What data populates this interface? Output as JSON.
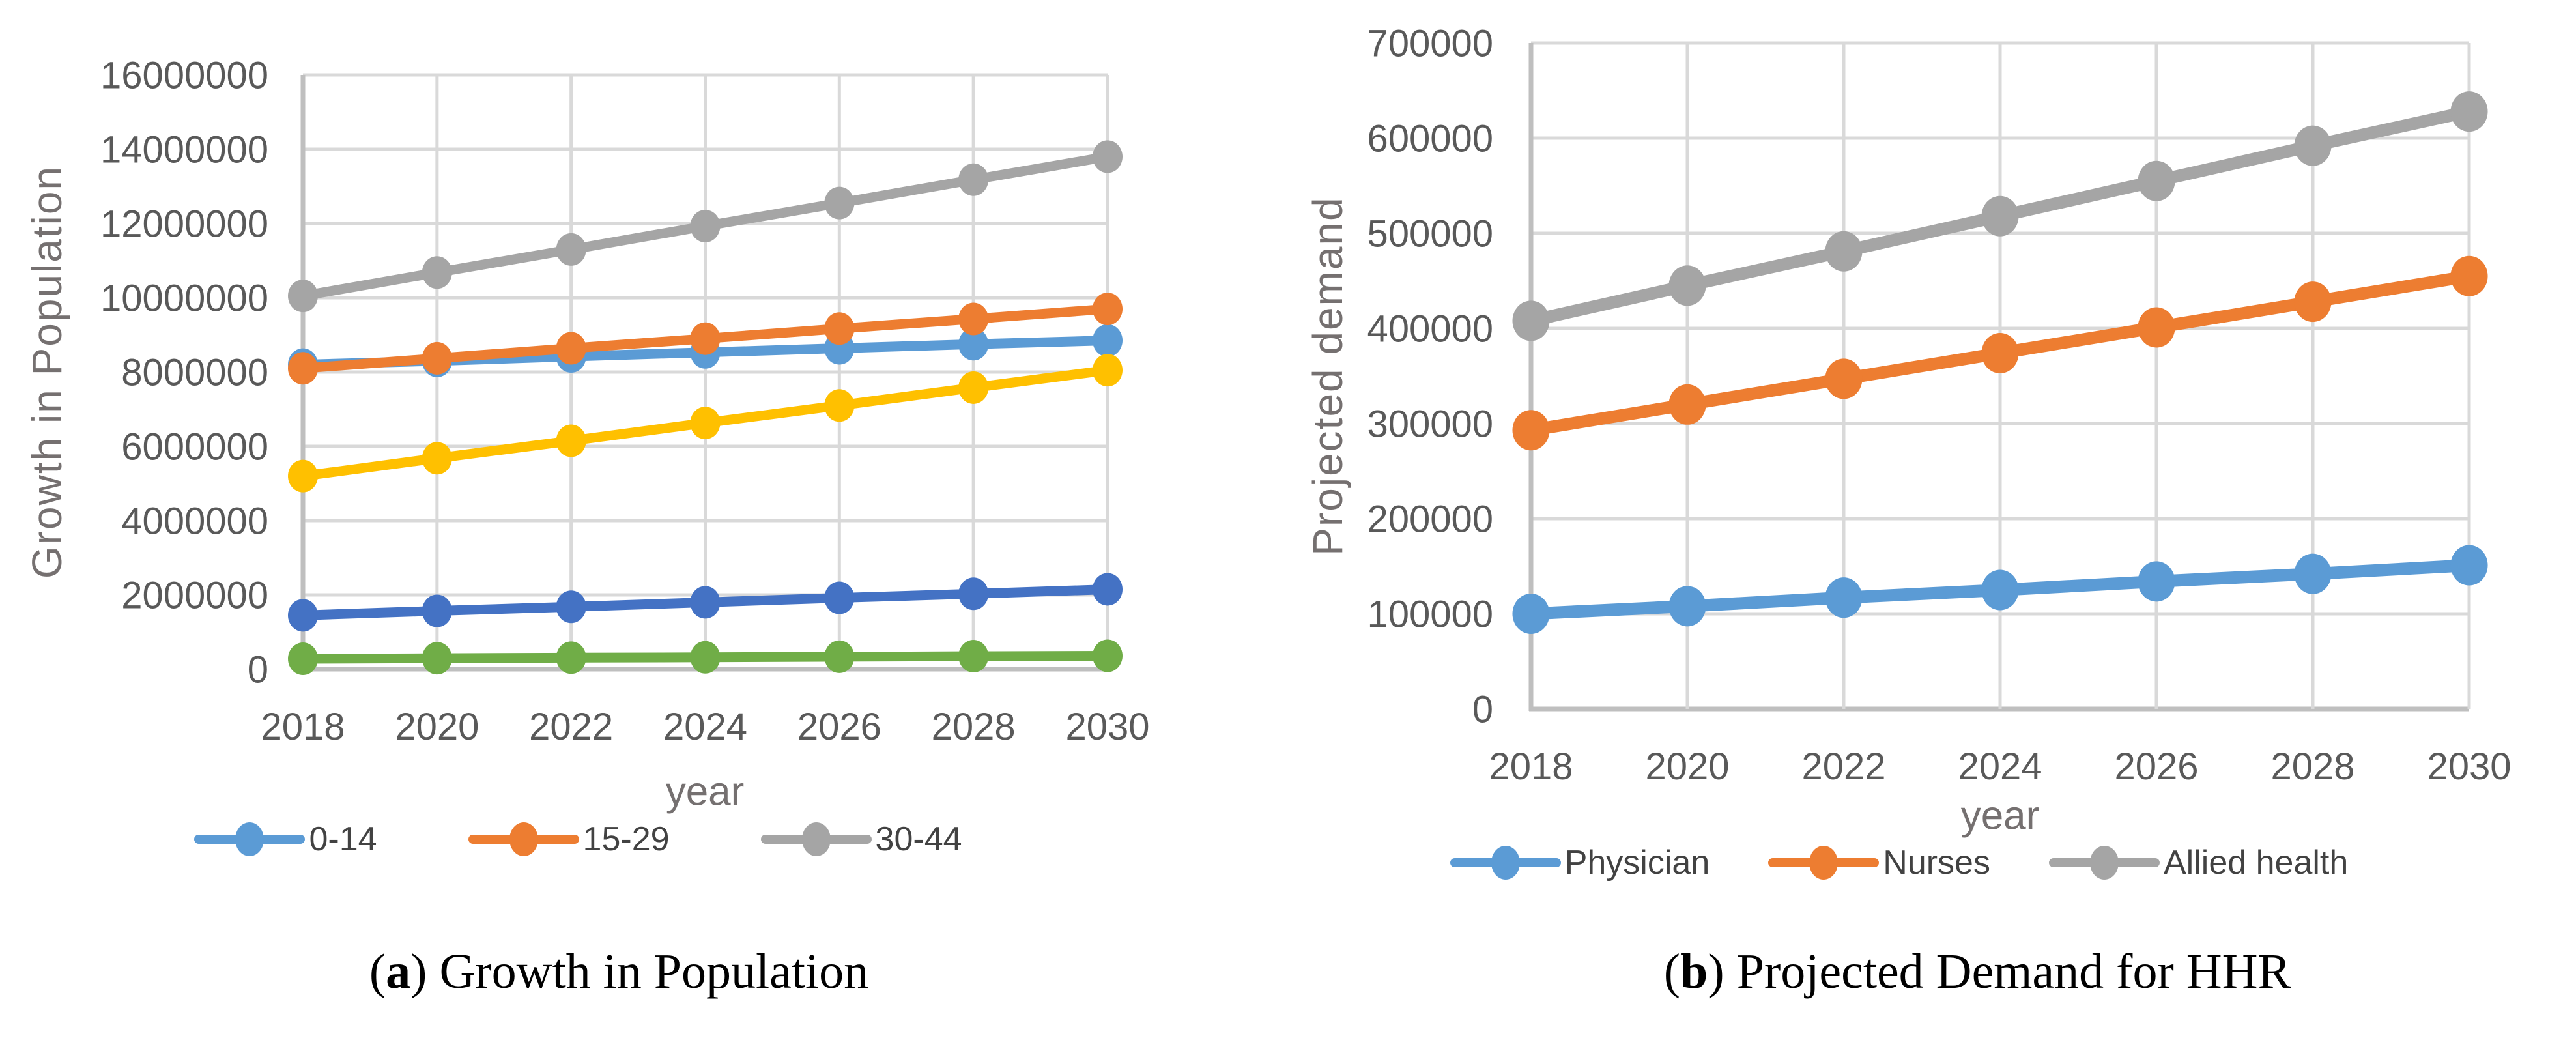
{
  "figure": {
    "background": "#ffffff",
    "grid_color": "#d9d9d9",
    "axis_color": "#bfbfbf",
    "tick_text_color": "#595959",
    "panel_count": 2
  },
  "chart_data": [
    {
      "type": "line",
      "caption_index": "a",
      "caption": "Growth in Population",
      "xlabel": "year",
      "ylabel": "Growth in Population",
      "x": [
        2018,
        2020,
        2022,
        2024,
        2026,
        2028,
        2030
      ],
      "x_tick_labels": [
        "2018",
        "2020",
        "2022",
        "2024",
        "2026",
        "2028",
        "2030"
      ],
      "ylim": [
        0,
        16000000
      ],
      "y_ticks": [
        0,
        2000000,
        4000000,
        6000000,
        8000000,
        10000000,
        12000000,
        14000000,
        16000000
      ],
      "grid": true,
      "legend_position": "bottom",
      "marker": "circle",
      "series": [
        {
          "name": "0-14",
          "color": "#5B9BD5",
          "in_legend": true,
          "values": [
            8200000,
            8300000,
            8420000,
            8530000,
            8640000,
            8750000,
            8850000
          ]
        },
        {
          "name": "15-29",
          "color": "#ED7D31",
          "in_legend": true,
          "values": [
            8100000,
            8370000,
            8640000,
            8900000,
            9170000,
            9430000,
            9700000
          ]
        },
        {
          "name": "30-44",
          "color": "#A5A5A5",
          "in_legend": true,
          "values": [
            10050000,
            10680000,
            11300000,
            11930000,
            12550000,
            13180000,
            13800000
          ]
        },
        {
          "name": "",
          "color": "#FFC000",
          "in_legend": false,
          "values": [
            5200000,
            5680000,
            6150000,
            6630000,
            7100000,
            7580000,
            8050000
          ]
        },
        {
          "name": "",
          "color": "#4472C4",
          "in_legend": false,
          "values": [
            1450000,
            1570000,
            1680000,
            1800000,
            1920000,
            2030000,
            2150000
          ]
        },
        {
          "name": "",
          "color": "#70AD47",
          "in_legend": false,
          "values": [
            280000,
            295000,
            310000,
            320000,
            335000,
            350000,
            360000
          ]
        }
      ]
    },
    {
      "type": "line",
      "caption_index": "b",
      "caption": "Projected Demand for HHR",
      "xlabel": "year",
      "ylabel": "Projected demand",
      "x": [
        2018,
        2020,
        2022,
        2024,
        2026,
        2028,
        2030
      ],
      "x_tick_labels": [
        "2018",
        "2020",
        "2022",
        "2024",
        "2026",
        "2028",
        "2030"
      ],
      "ylim": [
        0,
        700000
      ],
      "y_ticks": [
        0,
        100000,
        200000,
        300000,
        400000,
        500000,
        600000,
        700000
      ],
      "grid": true,
      "legend_position": "bottom",
      "marker": "circle",
      "series": [
        {
          "name": "Physician",
          "color": "#5B9BD5",
          "in_legend": true,
          "values": [
            100000,
            108000,
            117000,
            125000,
            134000,
            142000,
            151000
          ]
        },
        {
          "name": "Nurses",
          "color": "#ED7D31",
          "in_legend": true,
          "values": [
            293000,
            320000,
            347000,
            374000,
            401000,
            428000,
            455000
          ]
        },
        {
          "name": "Allied health",
          "color": "#A5A5A5",
          "in_legend": true,
          "values": [
            408000,
            445000,
            481000,
            518000,
            555000,
            592000,
            628000
          ]
        }
      ]
    }
  ]
}
